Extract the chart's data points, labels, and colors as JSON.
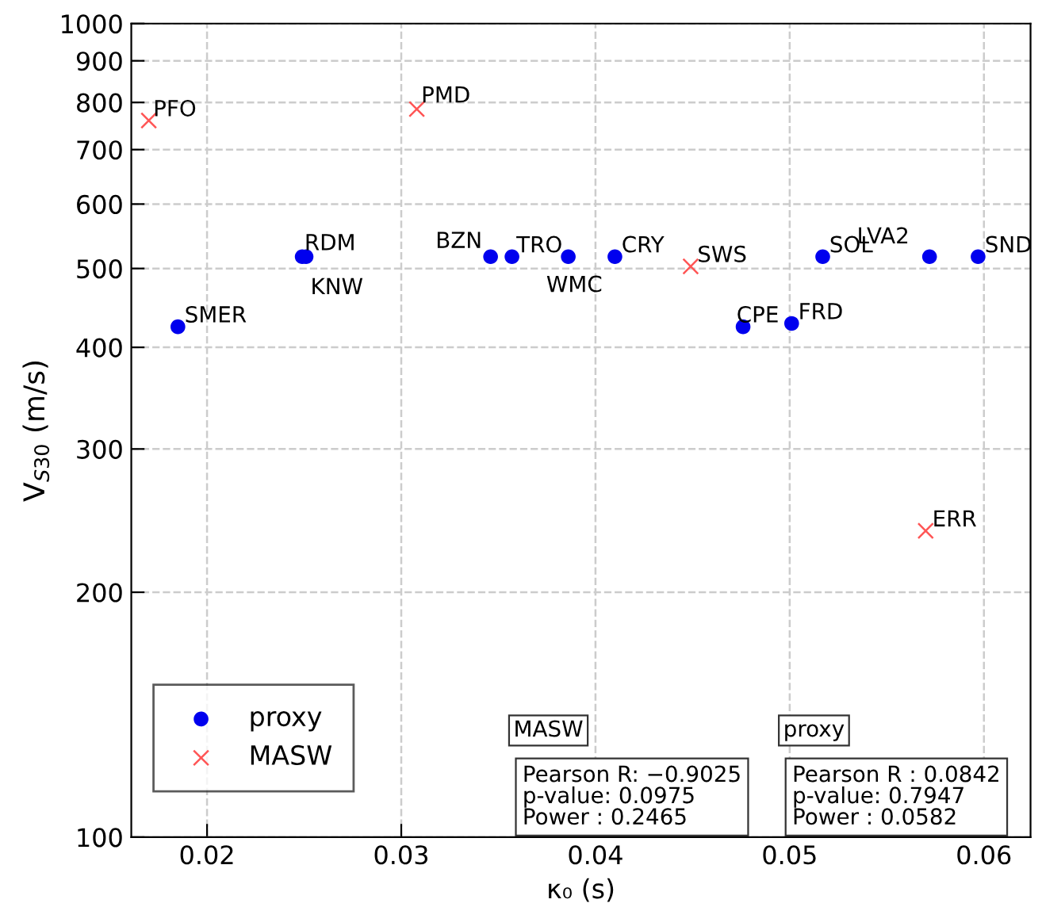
{
  "chart_data": {
    "type": "scatter",
    "xlabel": "κ₀ (s)",
    "ylabel": "V$_{S30}$ (m/s)",
    "log": "y",
    "grid": true,
    "legend": "bottom left",
    "xlim": [
      0.0161,
      0.0624
    ],
    "xticks": [
      0.02,
      0.03,
      0.04,
      0.05,
      0.06
    ],
    "ylim": [
      100,
      1000
    ],
    "yticks": [
      100,
      200,
      300,
      400,
      500,
      600,
      700,
      800,
      900,
      1000
    ],
    "series": [
      {
        "name": "proxy",
        "color": "#0000ee",
        "marker": "circle",
        "x": [
          0.0185,
          0.0249,
          0.0251,
          0.0346,
          0.0357,
          0.0386,
          0.041,
          0.0476,
          0.0501,
          0.0517,
          0.0572,
          0.0597
        ],
        "values": [
          424,
          517,
          517,
          517,
          517,
          517,
          517,
          424,
          428,
          517,
          517,
          517
        ]
      },
      {
        "name": "MASW",
        "color": "#ff5555",
        "marker": "cross",
        "x": [
          0.017,
          0.0308,
          0.0449,
          0.057
        ],
        "values": [
          760,
          785,
          503,
          238
        ]
      }
    ],
    "annotations": [
      {
        "text": "SMER",
        "x": 0.0185,
        "y": 424
      },
      {
        "text": "RDM",
        "x": 0.0249,
        "y": 517
      },
      {
        "text": "KNW",
        "x": 0.0251,
        "y": 517
      },
      {
        "text": "BZN",
        "x": 0.0346,
        "y": 517
      },
      {
        "text": "TRO",
        "x": 0.0357,
        "y": 517
      },
      {
        "text": "WMC",
        "x": 0.0386,
        "y": 517
      },
      {
        "text": "CRY",
        "x": 0.041,
        "y": 517
      },
      {
        "text": "CPE",
        "x": 0.0476,
        "y": 424
      },
      {
        "text": "FRD",
        "x": 0.0501,
        "y": 428
      },
      {
        "text": "SOL",
        "x": 0.0517,
        "y": 517
      },
      {
        "text": "LVA2",
        "x": 0.0572,
        "y": 517
      },
      {
        "text": "SND",
        "x": 0.0597,
        "y": 517
      },
      {
        "text": "PFO",
        "x": 0.017,
        "y": 760
      },
      {
        "text": "PMD",
        "x": 0.0308,
        "y": 785
      },
      {
        "text": "SWS",
        "x": 0.0449,
        "y": 503
      },
      {
        "text": "ERR",
        "x": 0.057,
        "y": 238
      },
      "MASW",
      "Pearson R: −0.9025\np-value: 0.0975\nPower : 0.2465",
      "proxy",
      "Pearson R : 0.0842\np-value: 0.7947\nPower : 0.0582"
    ]
  }
}
